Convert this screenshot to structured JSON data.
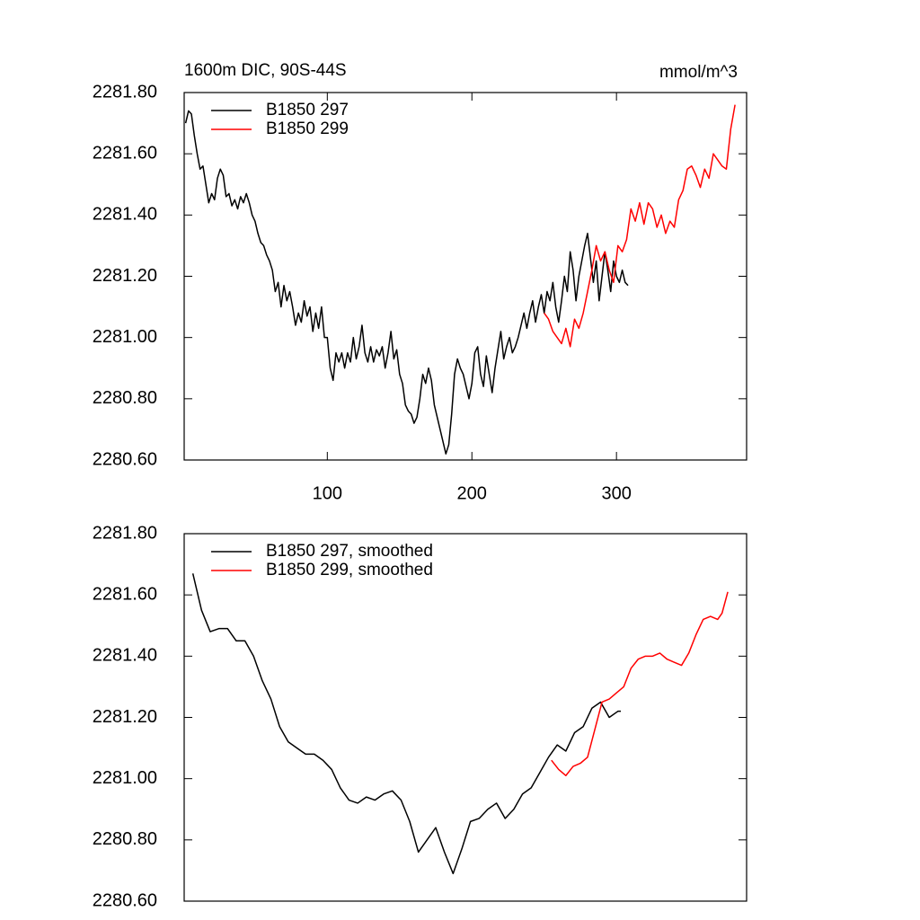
{
  "chart_data": [
    {
      "type": "line",
      "title": "1600m DIC, 90S-44S",
      "units": "mmol/m^3",
      "xlim": [
        1,
        390
      ],
      "xticks": [
        100,
        200,
        300
      ],
      "ylim": [
        2280.6,
        2281.8
      ],
      "yticks": [
        {
          "value": 2280.6,
          "label": "2280.60"
        },
        {
          "value": 2280.8,
          "label": "2280.80"
        },
        {
          "value": 2281.0,
          "label": "2281.00"
        },
        {
          "value": 2281.2,
          "label": "2281.20"
        },
        {
          "value": 2281.4,
          "label": "2281.40"
        },
        {
          "value": 2281.6,
          "label": "2281.60"
        },
        {
          "value": 2281.8,
          "label": "2281.80"
        }
      ],
      "series": [
        {
          "name": "B1850 297",
          "color": "#000000",
          "x": [
            2,
            4,
            6,
            8,
            10,
            12,
            14,
            16,
            18,
            20,
            22,
            24,
            26,
            28,
            30,
            32,
            34,
            36,
            38,
            40,
            42,
            44,
            46,
            48,
            50,
            52,
            54,
            56,
            58,
            60,
            62,
            64,
            66,
            68,
            70,
            72,
            74,
            76,
            78,
            80,
            82,
            84,
            86,
            88,
            90,
            92,
            94,
            96,
            98,
            100,
            102,
            104,
            106,
            108,
            110,
            112,
            114,
            116,
            118,
            120,
            122,
            124,
            126,
            128,
            130,
            132,
            134,
            136,
            138,
            140,
            142,
            144,
            146,
            148,
            150,
            152,
            154,
            156,
            158,
            160,
            162,
            164,
            166,
            168,
            170,
            172,
            174,
            176,
            178,
            180,
            182,
            184,
            186,
            188,
            190,
            192,
            194,
            196,
            198,
            200,
            202,
            204,
            206,
            208,
            210,
            212,
            214,
            216,
            218,
            220,
            222,
            224,
            226,
            228,
            230,
            232,
            234,
            236,
            238,
            240,
            242,
            244,
            246,
            248,
            250,
            252,
            254,
            256,
            258,
            260,
            262,
            264,
            266,
            268,
            270,
            272,
            274,
            276,
            278,
            280,
            282,
            284,
            286,
            288,
            290,
            292,
            294,
            296,
            298,
            300,
            302,
            304,
            306,
            308
          ],
          "values": [
            2281.7,
            2281.74,
            2281.73,
            2281.66,
            2281.6,
            2281.55,
            2281.56,
            2281.5,
            2281.44,
            2281.47,
            2281.45,
            2281.52,
            2281.55,
            2281.53,
            2281.46,
            2281.47,
            2281.43,
            2281.45,
            2281.42,
            2281.46,
            2281.44,
            2281.47,
            2281.44,
            2281.4,
            2281.38,
            2281.34,
            2281.31,
            2281.3,
            2281.27,
            2281.25,
            2281.22,
            2281.15,
            2281.18,
            2281.1,
            2281.17,
            2281.12,
            2281.15,
            2281.1,
            2281.04,
            2281.08,
            2281.05,
            2281.12,
            2281.07,
            2281.1,
            2281.02,
            2281.08,
            2281.03,
            2281.1,
            2281.0,
            2281.0,
            2280.9,
            2280.86,
            2280.95,
            2280.92,
            2280.95,
            2280.9,
            2280.95,
            2280.92,
            2281.0,
            2280.93,
            2280.97,
            2281.04,
            2280.95,
            2280.92,
            2280.97,
            2280.92,
            2280.96,
            2280.94,
            2280.97,
            2280.9,
            2280.95,
            2281.02,
            2280.93,
            2280.96,
            2280.88,
            2280.85,
            2280.78,
            2280.76,
            2280.75,
            2280.72,
            2280.74,
            2280.8,
            2280.88,
            2280.85,
            2280.9,
            2280.86,
            2280.78,
            2280.74,
            2280.7,
            2280.66,
            2280.62,
            2280.65,
            2280.75,
            2280.88,
            2280.93,
            2280.9,
            2280.88,
            2280.84,
            2280.8,
            2280.85,
            2280.95,
            2280.97,
            2280.88,
            2280.84,
            2280.94,
            2280.88,
            2280.82,
            2280.9,
            2280.96,
            2281.02,
            2280.93,
            2280.97,
            2281.0,
            2280.95,
            2280.97,
            2281.0,
            2281.04,
            2281.08,
            2281.03,
            2281.08,
            2281.12,
            2281.05,
            2281.1,
            2281.14,
            2281.08,
            2281.15,
            2281.12,
            2281.18,
            2281.1,
            2281.05,
            2281.12,
            2281.2,
            2281.15,
            2281.28,
            2281.22,
            2281.12,
            2281.2,
            2281.25,
            2281.3,
            2281.34,
            2281.26,
            2281.18,
            2281.25,
            2281.12,
            2281.2,
            2281.28,
            2281.22,
            2281.15,
            2281.25,
            2281.2,
            2281.18,
            2281.22,
            2281.18,
            2281.17
          ]
        },
        {
          "name": "B1850 299",
          "color": "#ff0000",
          "x": [
            250,
            253,
            256,
            259,
            262,
            265,
            268,
            271,
            274,
            277,
            280,
            283,
            286,
            289,
            292,
            295,
            298,
            301,
            304,
            307,
            310,
            313,
            316,
            319,
            322,
            325,
            328,
            331,
            334,
            337,
            340,
            343,
            346,
            349,
            352,
            355,
            358,
            361,
            364,
            367,
            370,
            373,
            376,
            379,
            382
          ],
          "values": [
            2281.08,
            2281.06,
            2281.02,
            2281.0,
            2280.98,
            2281.03,
            2280.97,
            2281.06,
            2281.03,
            2281.08,
            2281.15,
            2281.22,
            2281.3,
            2281.25,
            2281.28,
            2281.22,
            2281.18,
            2281.3,
            2281.28,
            2281.32,
            2281.42,
            2281.38,
            2281.44,
            2281.37,
            2281.44,
            2281.42,
            2281.36,
            2281.4,
            2281.34,
            2281.38,
            2281.36,
            2281.45,
            2281.48,
            2281.55,
            2281.56,
            2281.53,
            2281.49,
            2281.55,
            2281.52,
            2281.6,
            2281.58,
            2281.56,
            2281.55,
            2281.68,
            2281.76
          ]
        }
      ]
    },
    {
      "type": "line",
      "xlim": [
        1,
        390
      ],
      "ylim": [
        2280.6,
        2281.8
      ],
      "yticks": [
        {
          "value": 2280.6,
          "label": "2280.60"
        },
        {
          "value": 2280.8,
          "label": "2280.80"
        },
        {
          "value": 2281.0,
          "label": "2281.00"
        },
        {
          "value": 2281.2,
          "label": "2281.20"
        },
        {
          "value": 2281.4,
          "label": "2281.40"
        },
        {
          "value": 2281.6,
          "label": "2281.60"
        },
        {
          "value": 2281.8,
          "label": "2281.80"
        }
      ],
      "series": [
        {
          "name": "B1850 297, smoothed",
          "color": "#000000",
          "x": [
            7,
            13,
            19,
            25,
            31,
            37,
            43,
            49,
            55,
            61,
            67,
            73,
            79,
            85,
            91,
            97,
            103,
            109,
            115,
            121,
            127,
            133,
            139,
            145,
            151,
            157,
            163,
            169,
            175,
            181,
            187,
            193,
            199,
            205,
            211,
            217,
            223,
            229,
            235,
            241,
            247,
            253,
            259,
            265,
            271,
            277,
            283,
            289,
            295,
            301,
            303
          ],
          "values": [
            2281.67,
            2281.55,
            2281.48,
            2281.49,
            2281.49,
            2281.45,
            2281.45,
            2281.4,
            2281.32,
            2281.26,
            2281.17,
            2281.12,
            2281.1,
            2281.08,
            2281.08,
            2281.06,
            2281.03,
            2280.97,
            2280.93,
            2280.92,
            2280.94,
            2280.93,
            2280.95,
            2280.96,
            2280.93,
            2280.86,
            2280.76,
            2280.8,
            2280.84,
            2280.76,
            2280.69,
            2280.77,
            2280.86,
            2280.87,
            2280.9,
            2280.92,
            2280.87,
            2280.9,
            2280.95,
            2280.97,
            2281.02,
            2281.07,
            2281.11,
            2281.09,
            2281.15,
            2281.17,
            2281.23,
            2281.25,
            2281.2,
            2281.22,
            2281.22
          ]
        },
        {
          "name": "B1850 299, smoothed",
          "color": "#ff0000",
          "x": [
            255,
            260,
            265,
            270,
            275,
            280,
            285,
            290,
            295,
            300,
            305,
            310,
            315,
            320,
            325,
            330,
            335,
            340,
            345,
            350,
            355,
            360,
            365,
            370,
            373,
            377
          ],
          "values": [
            2281.06,
            2281.03,
            2281.01,
            2281.04,
            2281.05,
            2281.07,
            2281.16,
            2281.25,
            2281.26,
            2281.28,
            2281.3,
            2281.36,
            2281.39,
            2281.4,
            2281.4,
            2281.41,
            2281.39,
            2281.38,
            2281.37,
            2281.41,
            2281.47,
            2281.52,
            2281.53,
            2281.52,
            2281.54,
            2281.61
          ]
        }
      ]
    }
  ]
}
